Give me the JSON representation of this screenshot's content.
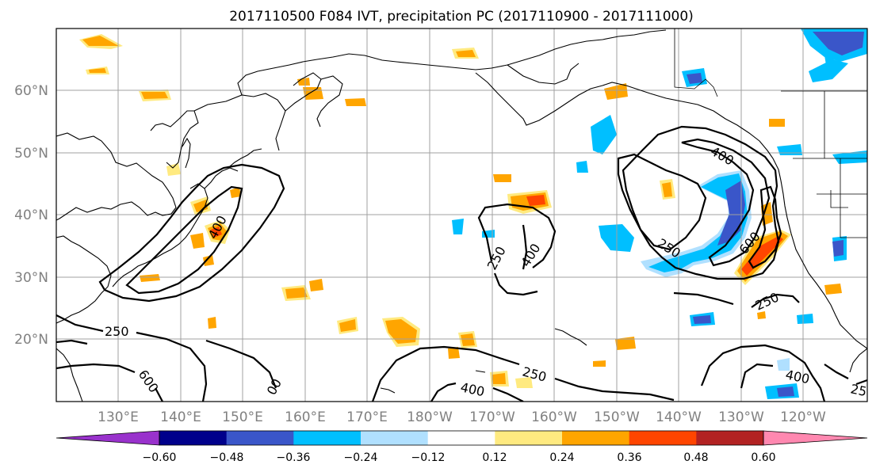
{
  "title": "2017110500 F084 IVT, precipitation PC (2017110900 - 2017111000)",
  "lon_labels": [
    "130°E",
    "140°E",
    "150°E",
    "160°E",
    "170°E",
    "180°W",
    "170°W",
    "160°W",
    "150°W",
    "140°W",
    "130°W",
    "120°W"
  ],
  "lat_labels": [
    "20°N",
    "30°N",
    "40°N",
    "50°N",
    "60°N"
  ],
  "contour_labels": {
    "japan_400": "400",
    "west_250": "250",
    "west_600": "600",
    "west_00": "00",
    "mid_250": "250",
    "mid_400": "400",
    "south_250": "250",
    "south_400": "400",
    "east_400": "400",
    "east_250": "250",
    "east_600": "600",
    "sw_250": "250",
    "se_400": "400",
    "se_25": "25"
  },
  "colorbar": {
    "ticks": [
      "−0.60",
      "−0.48",
      "−0.36",
      "−0.24",
      "−0.12",
      "0.12",
      "0.24",
      "0.36",
      "0.48",
      "0.60"
    ],
    "colors": [
      "#9932cc",
      "#00008b",
      "#3a56c9",
      "#00bfff",
      "#b0e0ff",
      "#ffffff",
      "#ffea80",
      "#ffa500",
      "#ff4500",
      "#b22222",
      "#ff88b0"
    ]
  },
  "colors": {
    "neg_light": "#b0e0ff",
    "neg_mid": "#00bfff",
    "neg_strong": "#3a56c9",
    "neg_dark": "#00008b",
    "pos_light": "#ffea80",
    "pos_mid": "#ffa500",
    "pos_strong": "#ff4500",
    "pos_dark": "#b22222"
  }
}
